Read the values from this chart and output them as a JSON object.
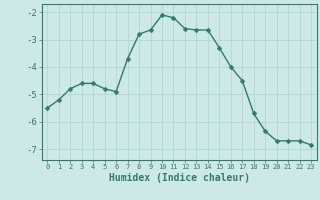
{
  "x": [
    0,
    1,
    2,
    3,
    4,
    5,
    6,
    7,
    8,
    9,
    10,
    11,
    12,
    13,
    14,
    15,
    16,
    17,
    18,
    19,
    20,
    21,
    22,
    23
  ],
  "y": [
    -5.5,
    -5.2,
    -4.8,
    -4.6,
    -4.6,
    -4.8,
    -4.9,
    -3.7,
    -2.8,
    -2.65,
    -2.1,
    -2.2,
    -2.6,
    -2.65,
    -2.65,
    -3.3,
    -4.0,
    -4.5,
    -5.7,
    -6.35,
    -6.7,
    -6.7,
    -6.7,
    -6.85
  ],
  "line_color": "#2d7d6e",
  "marker": "D",
  "markersize": 2.5,
  "linewidth": 1.0,
  "xlabel": "Humidex (Indice chaleur)",
  "xlabel_fontsize": 7,
  "xlabel_fontweight": "bold",
  "ylabel_ticks": [
    -2,
    -3,
    -4,
    -5,
    -6,
    -7
  ],
  "xtick_labels": [
    "0",
    "1",
    "2",
    "3",
    "4",
    "5",
    "6",
    "7",
    "8",
    "9",
    "10",
    "11",
    "12",
    "13",
    "14",
    "15",
    "16",
    "17",
    "18",
    "19",
    "20",
    "21",
    "22",
    "23"
  ],
  "xlim": [
    -0.5,
    23.5
  ],
  "ylim": [
    -7.4,
    -1.7
  ],
  "bg_color": "#cce9e7",
  "grid_color": "#aad4d0",
  "spine_color": "#2d7d6e",
  "tick_color": "#2d7d6e",
  "label_color": "#2d7d6e",
  "ytick_fontsize": 6.5,
  "xtick_fontsize": 5.0
}
